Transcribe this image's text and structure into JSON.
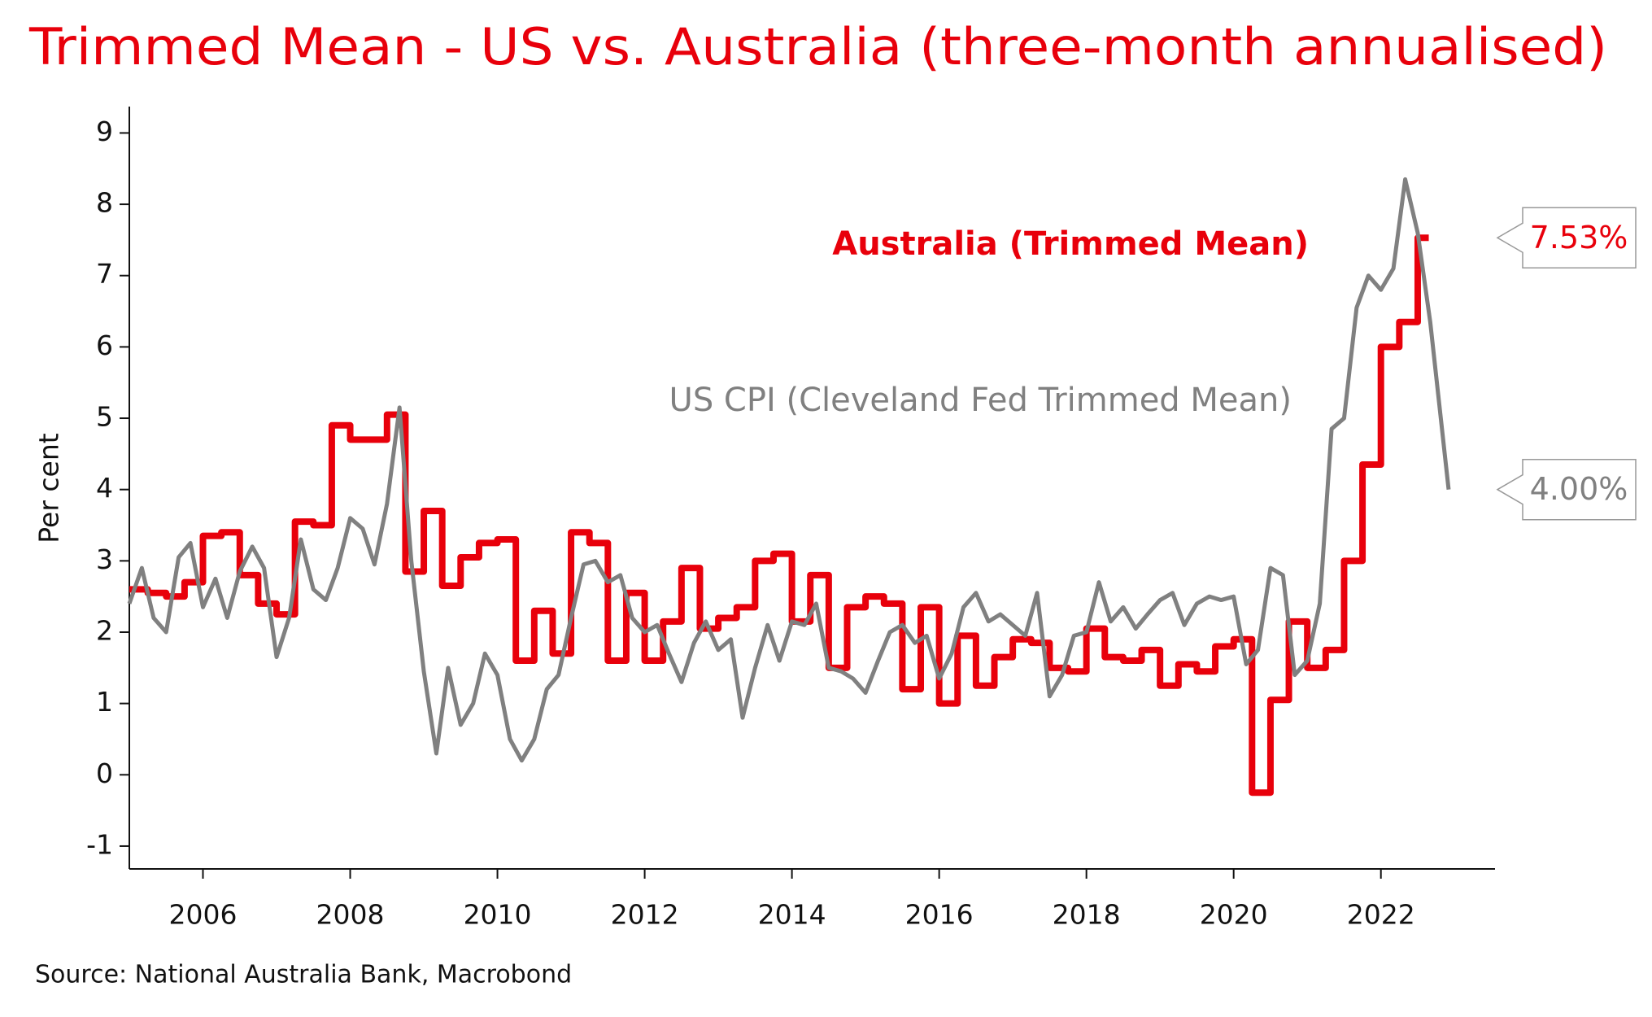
{
  "chart_data": {
    "type": "line",
    "title": "Trimmed Mean - US vs. Australia (three-month annualised)",
    "y_label": "Per cent",
    "source": "Source: National Australia Bank, Macrobond",
    "xlim": [
      2005,
      2023.55
    ],
    "xticks": [
      2006,
      2008,
      2010,
      2012,
      2014,
      2016,
      2018,
      2020,
      2022
    ],
    "ylim": [
      -1.32,
      9.37
    ],
    "yticks": [
      -1,
      0,
      1,
      2,
      3,
      4,
      5,
      6,
      7,
      8,
      9
    ],
    "grid": false,
    "series": [
      {
        "name": "Australia (Trimmed Mean)",
        "color": "#e8000b",
        "step": true,
        "end_label": "7.53%",
        "x": [
          2005,
          2005.25,
          2005.5,
          2005.75,
          2006,
          2006.25,
          2006.5,
          2006.75,
          2007,
          2007.25,
          2007.5,
          2007.75,
          2008,
          2008.25,
          2008.5,
          2008.75,
          2009,
          2009.25,
          2009.5,
          2009.75,
          2010,
          2010.25,
          2010.5,
          2010.75,
          2011,
          2011.25,
          2011.5,
          2011.75,
          2012,
          2012.25,
          2012.5,
          2012.75,
          2013,
          2013.25,
          2013.5,
          2013.75,
          2014,
          2014.25,
          2014.5,
          2014.75,
          2015,
          2015.25,
          2015.5,
          2015.75,
          2016,
          2016.25,
          2016.5,
          2016.75,
          2017,
          2017.25,
          2017.5,
          2017.75,
          2018,
          2018.25,
          2018.5,
          2018.75,
          2019,
          2019.25,
          2019.5,
          2019.75,
          2020,
          2020.25,
          2020.5,
          2020.75,
          2021,
          2021.25,
          2021.5,
          2021.75,
          2022,
          2022.25,
          2022.5
        ],
        "values": [
          2.6,
          2.55,
          2.5,
          2.7,
          3.35,
          3.4,
          2.8,
          2.4,
          2.25,
          3.55,
          3.5,
          4.9,
          4.7,
          4.7,
          5.05,
          2.85,
          3.7,
          2.65,
          3.05,
          3.25,
          3.3,
          1.6,
          2.3,
          1.7,
          3.4,
          3.25,
          1.6,
          2.55,
          1.6,
          2.15,
          2.9,
          2.05,
          2.2,
          2.35,
          3.0,
          3.1,
          2.15,
          2.8,
          1.5,
          2.35,
          2.5,
          2.4,
          1.2,
          2.35,
          1.0,
          1.95,
          1.25,
          1.65,
          1.9,
          1.85,
          1.5,
          1.45,
          2.05,
          1.65,
          1.6,
          1.75,
          1.25,
          1.55,
          1.45,
          1.8,
          1.9,
          -0.25,
          1.05,
          2.15,
          1.5,
          1.75,
          3.0,
          4.35,
          6.0,
          6.35,
          7.53
        ]
      },
      {
        "name": "US CPI (Cleveland Fed Trimmed Mean)",
        "color": "#808080",
        "step": false,
        "end_label": "4.00%",
        "x": [
          2005,
          2005.17,
          2005.33,
          2005.5,
          2005.67,
          2005.83,
          2006,
          2006.17,
          2006.33,
          2006.5,
          2006.67,
          2006.83,
          2007,
          2007.17,
          2007.33,
          2007.5,
          2007.67,
          2007.83,
          2008,
          2008.17,
          2008.33,
          2008.5,
          2008.67,
          2008.83,
          2009,
          2009.17,
          2009.33,
          2009.5,
          2009.67,
          2009.83,
          2010,
          2010.17,
          2010.33,
          2010.5,
          2010.67,
          2010.83,
          2011,
          2011.17,
          2011.33,
          2011.5,
          2011.67,
          2011.83,
          2012,
          2012.17,
          2012.33,
          2012.5,
          2012.67,
          2012.83,
          2013,
          2013.17,
          2013.33,
          2013.5,
          2013.67,
          2013.83,
          2014,
          2014.17,
          2014.33,
          2014.5,
          2014.67,
          2014.83,
          2015,
          2015.17,
          2015.33,
          2015.5,
          2015.67,
          2015.83,
          2016,
          2016.17,
          2016.33,
          2016.5,
          2016.67,
          2016.83,
          2017,
          2017.17,
          2017.33,
          2017.5,
          2017.67,
          2017.83,
          2018,
          2018.17,
          2018.33,
          2018.5,
          2018.67,
          2018.83,
          2019,
          2019.17,
          2019.33,
          2019.5,
          2019.67,
          2019.83,
          2020,
          2020.17,
          2020.33,
          2020.5,
          2020.67,
          2020.83,
          2021,
          2021.17,
          2021.33,
          2021.5,
          2021.67,
          2021.83,
          2022,
          2022.17,
          2022.33,
          2022.5,
          2022.67,
          2022.92
        ],
        "values": [
          2.4,
          2.9,
          2.2,
          2.0,
          3.05,
          3.25,
          2.35,
          2.75,
          2.2,
          2.85,
          3.2,
          2.9,
          1.65,
          2.2,
          3.3,
          2.6,
          2.45,
          2.9,
          3.6,
          3.45,
          2.95,
          3.8,
          5.15,
          3.0,
          1.45,
          0.3,
          1.5,
          0.7,
          1.0,
          1.7,
          1.4,
          0.5,
          0.2,
          0.5,
          1.2,
          1.4,
          2.2,
          2.95,
          3.0,
          2.7,
          2.8,
          2.2,
          2.0,
          2.1,
          1.7,
          1.3,
          1.85,
          2.15,
          1.75,
          1.9,
          0.8,
          1.5,
          2.1,
          1.6,
          2.15,
          2.1,
          2.4,
          1.5,
          1.45,
          1.35,
          1.15,
          1.6,
          2.0,
          2.1,
          1.85,
          1.95,
          1.35,
          1.7,
          2.35,
          2.55,
          2.15,
          2.25,
          2.1,
          1.95,
          2.55,
          1.1,
          1.4,
          1.95,
          2.0,
          2.7,
          2.15,
          2.35,
          2.05,
          2.25,
          2.45,
          2.55,
          2.1,
          2.4,
          2.5,
          2.45,
          2.5,
          1.55,
          1.75,
          2.9,
          2.8,
          1.4,
          1.6,
          2.4,
          4.85,
          5.0,
          6.55,
          7.0,
          6.8,
          7.1,
          8.35,
          7.6,
          6.35,
          4.0
        ]
      }
    ]
  }
}
